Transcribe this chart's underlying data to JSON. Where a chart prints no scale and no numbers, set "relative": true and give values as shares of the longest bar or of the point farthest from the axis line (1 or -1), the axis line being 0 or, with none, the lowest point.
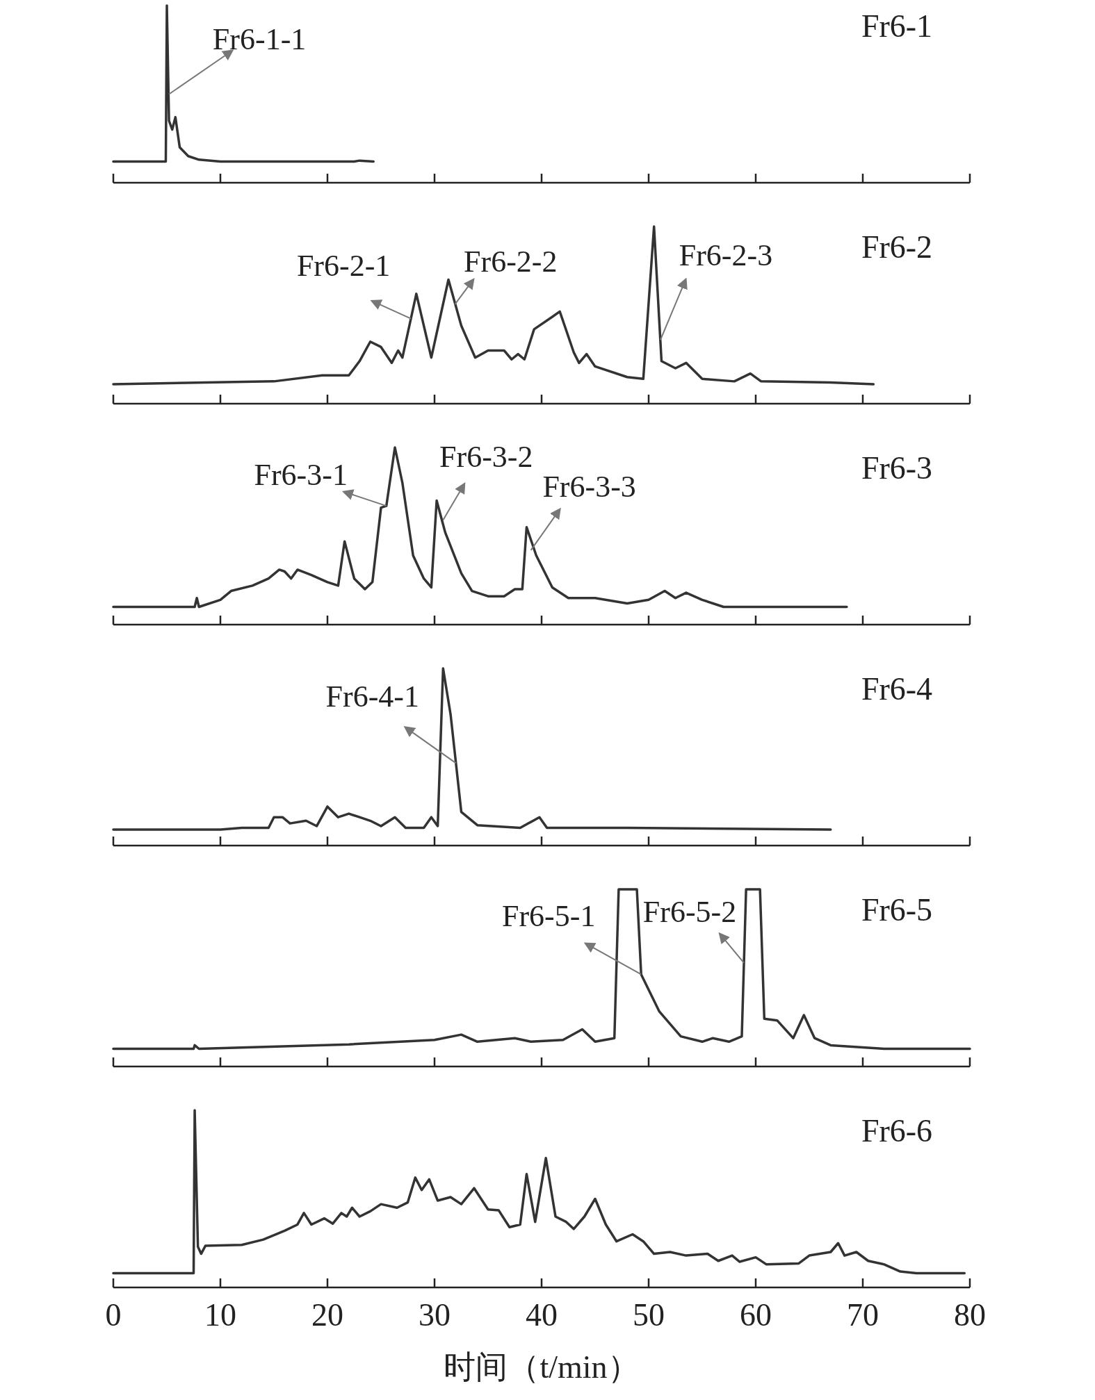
{
  "chart_data": [
    {
      "type": "line",
      "relative": true,
      "title": "Fr6-1",
      "xlim": [
        0,
        80
      ],
      "xticks": [
        0,
        10,
        20,
        30,
        40,
        50,
        60,
        70,
        80
      ],
      "tick_labels": false,
      "color": "#333333",
      "x": [
        0,
        4.9,
        5.0,
        5.2,
        5.5,
        5.8,
        6.2,
        7,
        8,
        10,
        22.5,
        23,
        24.3
      ],
      "values": [
        0.12,
        0.12,
        1.0,
        0.35,
        0.3,
        0.37,
        0.2,
        0.15,
        0.13,
        0.12,
        0.12,
        0.125,
        0.12
      ],
      "annotations": [
        {
          "text": "Fr6-1-1",
          "x": 5.2,
          "y": 0.5
        }
      ]
    },
    {
      "type": "line",
      "relative": true,
      "title": "Fr6-2",
      "xlim": [
        0,
        80
      ],
      "xticks": [
        0,
        10,
        20,
        30,
        40,
        50,
        60,
        70,
        80
      ],
      "tick_labels": false,
      "color": "#333333",
      "x": [
        0,
        15,
        19.5,
        22,
        23,
        24,
        25,
        26,
        26.6,
        27,
        28.3,
        29.7,
        31.3,
        32.5,
        33.8,
        35,
        36.5,
        37.2,
        37.8,
        38.4,
        39.3,
        41,
        41.7,
        43,
        43.5,
        44.2,
        45,
        48,
        49.5,
        50.5,
        51.2,
        52.5,
        53.5,
        55,
        58,
        59.5,
        60.5,
        67,
        71
      ],
      "values": [
        0.11,
        0.126,
        0.16,
        0.16,
        0.24,
        0.35,
        0.32,
        0.23,
        0.3,
        0.26,
        0.62,
        0.26,
        0.7,
        0.44,
        0.26,
        0.3,
        0.3,
        0.25,
        0.28,
        0.25,
        0.42,
        0.49,
        0.52,
        0.29,
        0.23,
        0.28,
        0.21,
        0.15,
        0.14,
        1.0,
        0.24,
        0.2,
        0.23,
        0.14,
        0.126,
        0.17,
        0.126,
        0.12,
        0.11
      ],
      "annotations": [
        {
          "text": "Fr6-2-1",
          "x": 27.8,
          "y": 0.48
        },
        {
          "text": "Fr6-2-2",
          "x": 31.9,
          "y": 0.56
        },
        {
          "text": "Fr6-2-3",
          "x": 51.1,
          "y": 0.36
        }
      ]
    },
    {
      "type": "line",
      "relative": true,
      "title": "Fr6-3",
      "xlim": [
        0,
        80
      ],
      "xticks": [
        0,
        10,
        20,
        30,
        40,
        50,
        60,
        70,
        80
      ],
      "tick_labels": false,
      "color": "#333333",
      "x": [
        0,
        7.6,
        7.8,
        8,
        10,
        11,
        13,
        14.5,
        15.5,
        16,
        16.6,
        17.2,
        18.5,
        20,
        21,
        21.6,
        22.5,
        23.5,
        24.2,
        25,
        25.5,
        26.3,
        27,
        28,
        29,
        29.7,
        30.2,
        31,
        32.5,
        33.5,
        35,
        36.5,
        37.5,
        38.2,
        38.6,
        39.5,
        41,
        42.5,
        45,
        48,
        50,
        51.5,
        52.5,
        53.5,
        55,
        57,
        68.5
      ],
      "values": [
        0.1,
        0.1,
        0.15,
        0.1,
        0.14,
        0.19,
        0.22,
        0.26,
        0.31,
        0.3,
        0.26,
        0.31,
        0.28,
        0.24,
        0.22,
        0.47,
        0.26,
        0.2,
        0.24,
        0.66,
        0.67,
        1.0,
        0.8,
        0.39,
        0.26,
        0.21,
        0.7,
        0.52,
        0.29,
        0.19,
        0.16,
        0.16,
        0.2,
        0.2,
        0.55,
        0.39,
        0.21,
        0.15,
        0.15,
        0.12,
        0.14,
        0.19,
        0.15,
        0.18,
        0.14,
        0.1,
        0.1
      ],
      "annotations": [
        {
          "text": "Fr6-3-1",
          "x": 25.5,
          "y": 0.67
        },
        {
          "text": "Fr6-3-2",
          "x": 30.8,
          "y": 0.59
        },
        {
          "text": "Fr6-3-3",
          "x": 39.0,
          "y": 0.42
        }
      ]
    },
    {
      "type": "line",
      "relative": true,
      "title": "Fr6-4",
      "xlim": [
        0,
        80
      ],
      "xticks": [
        0,
        10,
        20,
        30,
        40,
        50,
        60,
        70,
        80
      ],
      "tick_labels": false,
      "color": "#333333",
      "x": [
        0,
        10,
        12,
        14.5,
        15,
        15.8,
        16.5,
        18,
        19,
        20,
        21,
        22,
        23,
        24,
        25,
        26.3,
        27.3,
        29,
        29.7,
        30.3,
        30.8,
        31.5,
        32.5,
        34,
        38,
        39.8,
        40.5,
        48,
        67
      ],
      "values": [
        0.09,
        0.09,
        0.1,
        0.1,
        0.16,
        0.16,
        0.125,
        0.14,
        0.11,
        0.22,
        0.16,
        0.18,
        0.16,
        0.14,
        0.11,
        0.16,
        0.1,
        0.1,
        0.16,
        0.11,
        1.0,
        0.74,
        0.19,
        0.115,
        0.1,
        0.16,
        0.1,
        0.1,
        0.09
      ],
      "annotations": [
        {
          "text": "Fr6-4-1",
          "x": 32.0,
          "y": 0.465
        }
      ]
    },
    {
      "type": "line",
      "relative": true,
      "title": "Fr6-5",
      "xlim": [
        0,
        80
      ],
      "xticks": [
        0,
        10,
        20,
        30,
        40,
        50,
        60,
        70,
        80
      ],
      "tick_labels": false,
      "color": "#333333",
      "x": [
        0,
        7.5,
        7.6,
        8,
        22,
        30,
        32.5,
        34,
        37.5,
        39,
        42,
        43.8,
        45,
        46.8,
        47.2,
        48.9,
        49.3,
        51,
        53,
        55,
        56,
        57.5,
        58.7,
        59.1,
        60.4,
        60.8,
        62,
        63.5,
        64.5,
        65.5,
        67,
        72,
        80
      ],
      "values": [
        0.1,
        0.1,
        0.12,
        0.1,
        0.125,
        0.15,
        0.18,
        0.14,
        0.16,
        0.14,
        0.15,
        0.21,
        0.14,
        0.16,
        1.0,
        1.0,
        0.52,
        0.31,
        0.17,
        0.14,
        0.16,
        0.14,
        0.17,
        1.0,
        1.0,
        0.27,
        0.26,
        0.16,
        0.29,
        0.16,
        0.12,
        0.1,
        0.1
      ],
      "annotations": [
        {
          "text": "Fr6-5-1",
          "x": 49.3,
          "y": 0.52
        },
        {
          "text": "Fr6-5-2",
          "x": 58.9,
          "y": 0.585
        }
      ]
    },
    {
      "type": "line",
      "relative": true,
      "title": "Fr6-6",
      "xlabel": "时间（t/min）",
      "xlim": [
        0,
        80
      ],
      "xticks": [
        0,
        10,
        20,
        30,
        40,
        50,
        60,
        70,
        80
      ],
      "color": "#333333",
      "x": [
        0,
        7.5,
        7.6,
        7.9,
        8.2,
        8.6,
        12,
        14,
        16,
        17.2,
        17.8,
        18.5,
        19.7,
        20.5,
        21.3,
        21.8,
        22.3,
        23,
        24,
        25,
        26.5,
        27.5,
        28.2,
        28.8,
        29.5,
        30.3,
        31.5,
        32.5,
        33.7,
        35,
        36,
        37,
        38,
        38.6,
        39.4,
        40.4,
        41.3,
        42.3,
        43,
        44,
        45,
        46,
        47,
        48.5,
        49.5,
        50.5,
        52,
        53.5,
        55.5,
        56.5,
        57.8,
        58.5,
        60,
        61,
        64,
        65,
        67,
        67.7,
        68.3,
        69.4,
        70.5,
        72,
        73.5,
        75,
        79.5
      ],
      "values": [
        0.08,
        0.08,
        1.0,
        0.23,
        0.19,
        0.235,
        0.24,
        0.27,
        0.32,
        0.355,
        0.42,
        0.355,
        0.39,
        0.36,
        0.42,
        0.4,
        0.45,
        0.4,
        0.43,
        0.47,
        0.45,
        0.48,
        0.62,
        0.55,
        0.61,
        0.49,
        0.51,
        0.47,
        0.56,
        0.44,
        0.435,
        0.34,
        0.355,
        0.64,
        0.37,
        0.73,
        0.4,
        0.37,
        0.33,
        0.4,
        0.5,
        0.355,
        0.26,
        0.3,
        0.26,
        0.19,
        0.2,
        0.18,
        0.19,
        0.15,
        0.18,
        0.145,
        0.17,
        0.13,
        0.135,
        0.18,
        0.2,
        0.25,
        0.18,
        0.2,
        0.15,
        0.13,
        0.09,
        0.08,
        0.08
      ]
    }
  ]
}
